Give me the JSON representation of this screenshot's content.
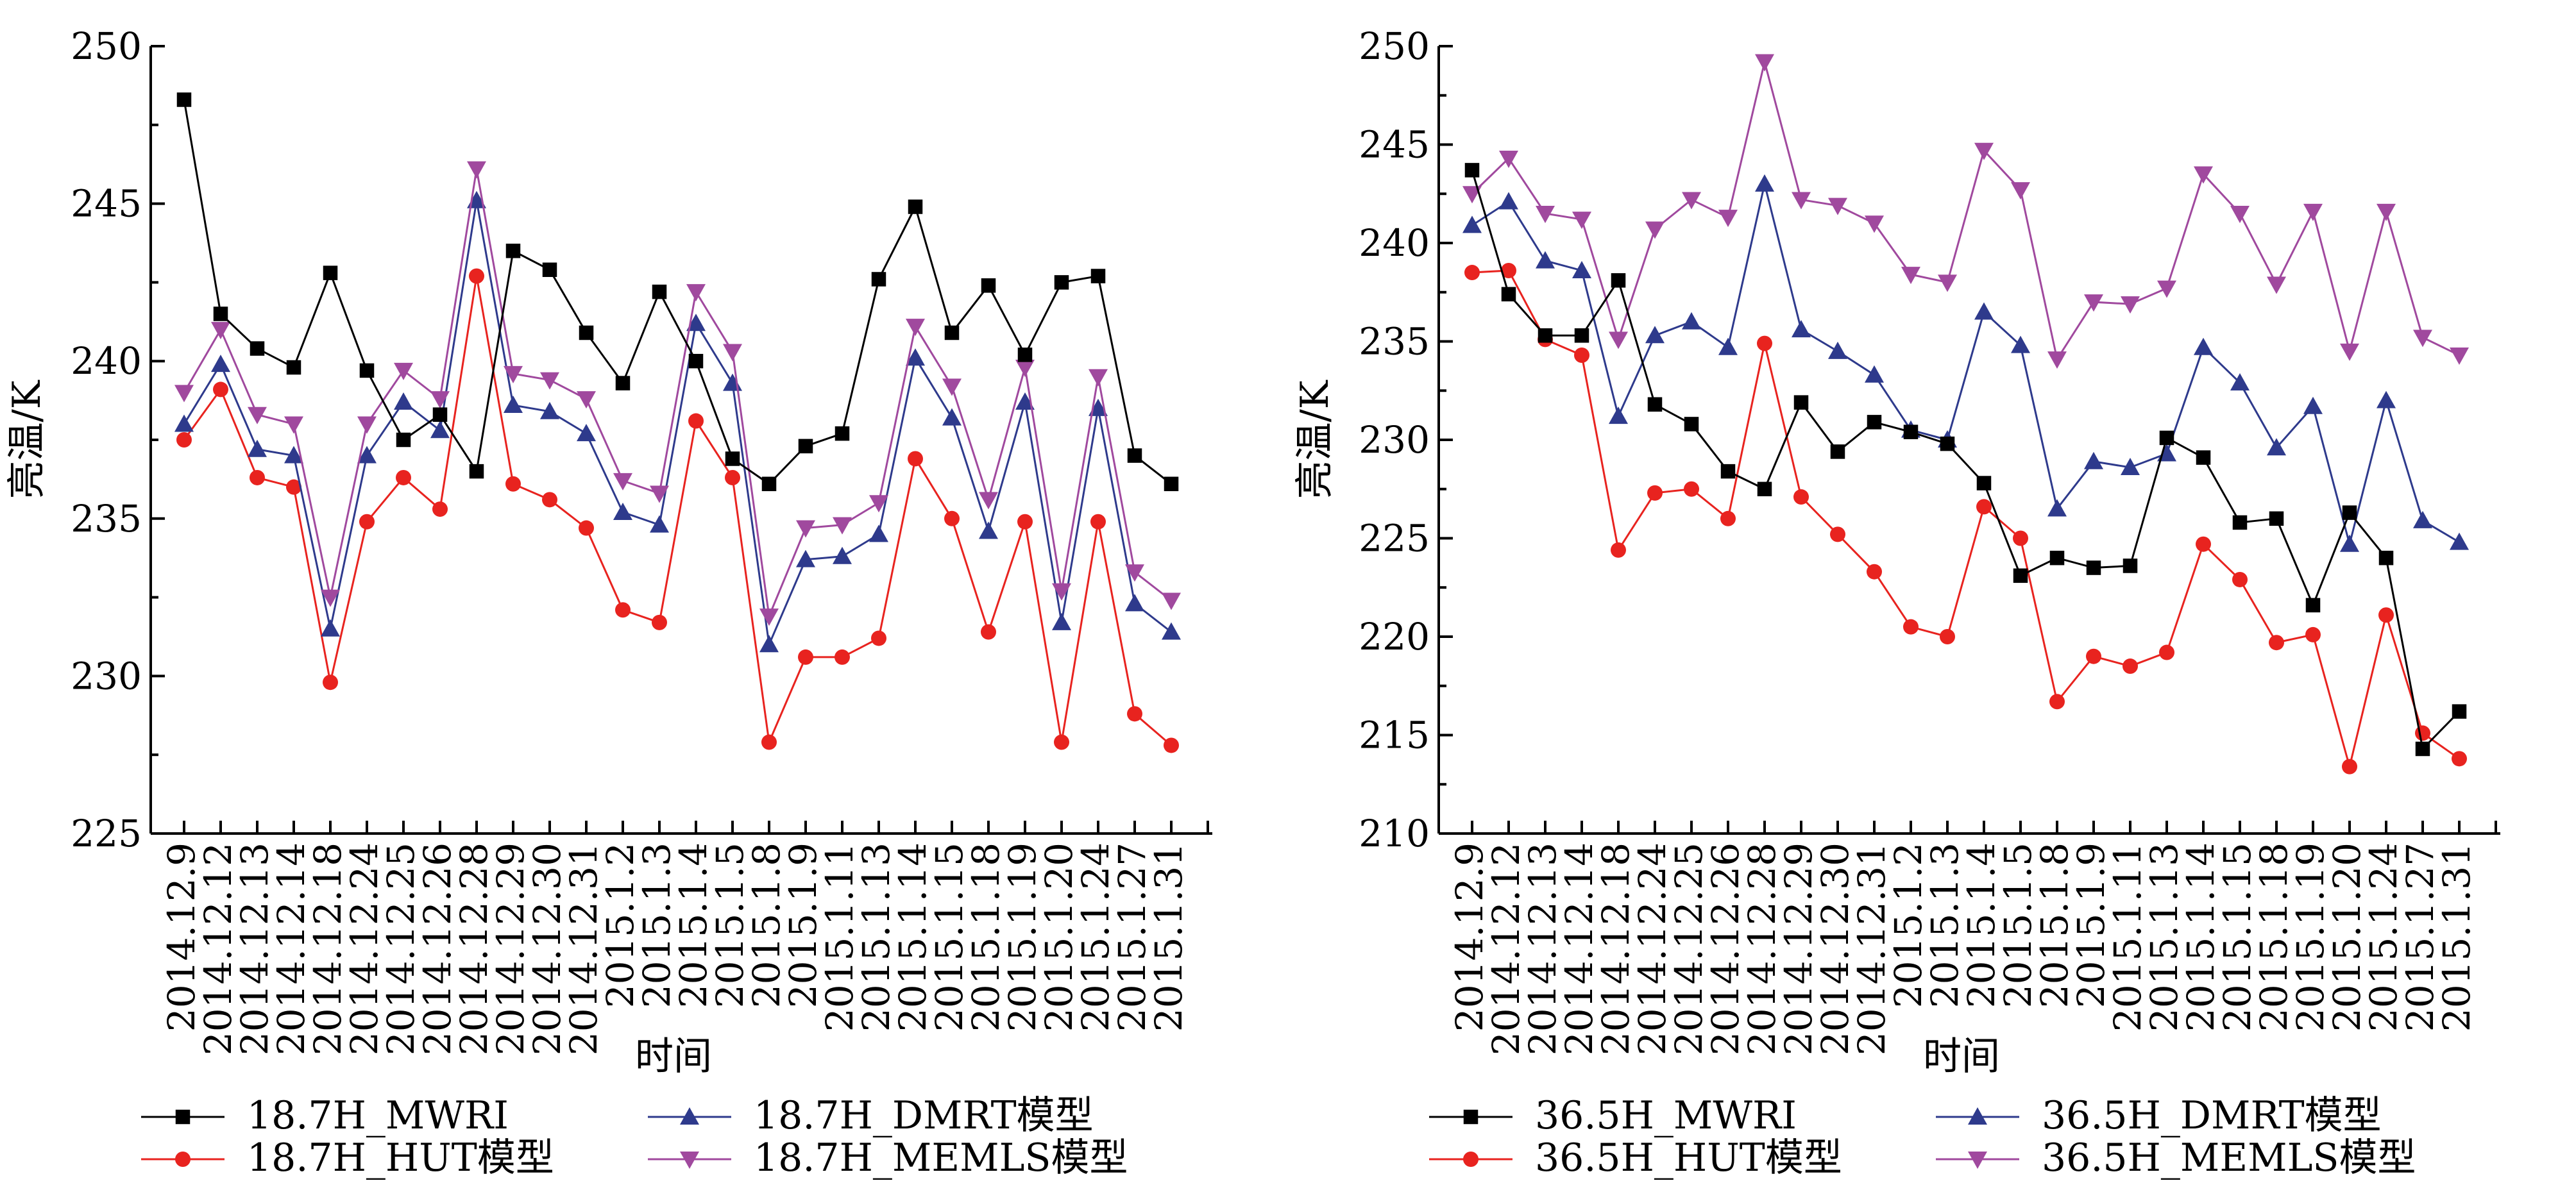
{
  "chart_data": [
    {
      "type": "line",
      "xlabel": "时间",
      "ylabel": "亮温/K",
      "ylim": [
        225,
        250
      ],
      "yticks": [
        225,
        230,
        235,
        240,
        245,
        250
      ],
      "grid": false,
      "legend_position": "bottom",
      "categories": [
        "2014.12.9",
        "2014.12.12",
        "2014.12.13",
        "2014.12.14",
        "2014.12.18",
        "2014.12.24",
        "2014.12.25",
        "2014.12.26",
        "2014.12.28",
        "2014.12.29",
        "2014.12.30",
        "2014.12.31",
        "2015.1.2",
        "2015.1.3",
        "2015.1.4",
        "2015.1.5",
        "2015.1.8",
        "2015.1.9",
        "2015.1.11",
        "2015.1.13",
        "2015.1.14",
        "2015.1.15",
        "2015.1.18",
        "2015.1.19",
        "2015.1.20",
        "2015.1.24",
        "2015.1.27",
        "2015.1.31"
      ],
      "series": [
        {
          "name": "18.7H_MWRI",
          "color": "#000000",
          "marker": "square",
          "values": [
            248.3,
            241.5,
            240.4,
            239.8,
            242.8,
            239.7,
            237.5,
            238.3,
            236.5,
            243.5,
            242.9,
            240.9,
            239.3,
            242.2,
            240.0,
            236.9,
            236.1,
            237.3,
            237.7,
            242.6,
            244.9,
            240.9,
            242.4,
            240.2,
            242.5,
            242.7,
            237.0,
            236.1
          ]
        },
        {
          "name": "18.7H_DMRT模型",
          "color": "#2e3a8c",
          "marker": "triangle-up",
          "values": [
            238.0,
            239.9,
            237.2,
            237.0,
            231.5,
            237.0,
            238.7,
            237.8,
            245.1,
            238.6,
            238.4,
            237.7,
            235.2,
            234.8,
            241.2,
            239.3,
            231.0,
            233.7,
            233.8,
            234.5,
            240.1,
            238.2,
            234.6,
            238.7,
            231.7,
            238.5,
            232.3,
            231.4
          ]
        },
        {
          "name": "18.7H_HUT模型",
          "color": "#e8231f",
          "marker": "circle",
          "values": [
            237.5,
            239.1,
            236.3,
            236.0,
            229.8,
            234.9,
            236.3,
            235.3,
            242.7,
            236.1,
            235.6,
            234.7,
            232.1,
            231.7,
            238.1,
            236.3,
            227.9,
            230.6,
            230.6,
            231.2,
            236.9,
            235.0,
            231.4,
            234.9,
            227.9,
            234.9,
            228.8,
            227.8
          ]
        },
        {
          "name": "18.7H_MEMLS模型",
          "color": "#a0499e",
          "marker": "triangle-down",
          "values": [
            239.0,
            241.0,
            238.3,
            238.0,
            232.5,
            238.0,
            239.7,
            238.8,
            246.1,
            239.6,
            239.4,
            238.8,
            236.2,
            235.8,
            242.2,
            240.3,
            231.9,
            234.7,
            234.8,
            235.5,
            241.1,
            239.2,
            235.6,
            239.8,
            232.7,
            239.5,
            233.3,
            232.4
          ]
        }
      ]
    },
    {
      "type": "line",
      "xlabel": "时间",
      "ylabel": "亮温/K",
      "ylim": [
        210,
        250
      ],
      "yticks": [
        210,
        215,
        220,
        225,
        230,
        235,
        240,
        245,
        250
      ],
      "grid": false,
      "legend_position": "bottom",
      "categories": [
        "2014.12.9",
        "2014.12.12",
        "2014.12.13",
        "2014.12.14",
        "2014.12.18",
        "2014.12.24",
        "2014.12.25",
        "2014.12.26",
        "2014.12.28",
        "2014.12.29",
        "2014.12.30",
        "2014.12.31",
        "2015.1.2",
        "2015.1.3",
        "2015.1.4",
        "2015.1.5",
        "2015.1.8",
        "2015.1.9",
        "2015.1.11",
        "2015.1.13",
        "2015.1.14",
        "2015.1.15",
        "2015.1.18",
        "2015.1.19",
        "2015.1.20",
        "2015.1.24",
        "2015.1.27",
        "2015.1.31"
      ],
      "series": [
        {
          "name": "36.5H_MWRI",
          "color": "#000000",
          "marker": "square",
          "values": [
            243.7,
            237.4,
            235.3,
            235.3,
            238.1,
            231.8,
            230.8,
            228.4,
            227.5,
            231.9,
            229.4,
            230.9,
            230.4,
            229.8,
            227.8,
            223.1,
            224.0,
            223.5,
            223.6,
            230.1,
            229.1,
            225.8,
            226.0,
            221.6,
            226.3,
            224.0,
            214.3,
            216.2
          ]
        },
        {
          "name": "36.5H_DMRT模型",
          "color": "#2e3a8c",
          "marker": "triangle-up",
          "values": [
            240.9,
            242.1,
            239.1,
            238.6,
            231.2,
            235.3,
            236.0,
            234.7,
            243.0,
            235.6,
            234.5,
            233.3,
            230.5,
            230.0,
            236.5,
            234.8,
            226.5,
            228.9,
            228.6,
            229.3,
            234.7,
            232.9,
            229.6,
            231.7,
            224.7,
            232.0,
            225.9,
            224.8
          ]
        },
        {
          "name": "36.5H_HUT模型",
          "color": "#e8231f",
          "marker": "circle",
          "values": [
            238.5,
            238.6,
            235.1,
            234.3,
            224.4,
            227.3,
            227.5,
            226.0,
            234.9,
            227.1,
            225.2,
            223.3,
            220.5,
            220.0,
            226.6,
            225.0,
            216.7,
            219.0,
            218.5,
            219.2,
            224.7,
            222.9,
            219.7,
            220.1,
            213.4,
            221.1,
            215.1,
            213.8
          ]
        },
        {
          "name": "36.5H_MEMLS模型",
          "color": "#a0499e",
          "marker": "triangle-down",
          "values": [
            242.5,
            244.3,
            241.5,
            241.2,
            235.1,
            240.7,
            242.2,
            241.3,
            249.2,
            242.2,
            241.9,
            241.0,
            238.4,
            238.0,
            244.7,
            242.7,
            234.1,
            237.0,
            236.9,
            237.7,
            243.5,
            241.5,
            237.9,
            241.6,
            234.5,
            241.6,
            235.2,
            234.3
          ]
        }
      ]
    }
  ]
}
